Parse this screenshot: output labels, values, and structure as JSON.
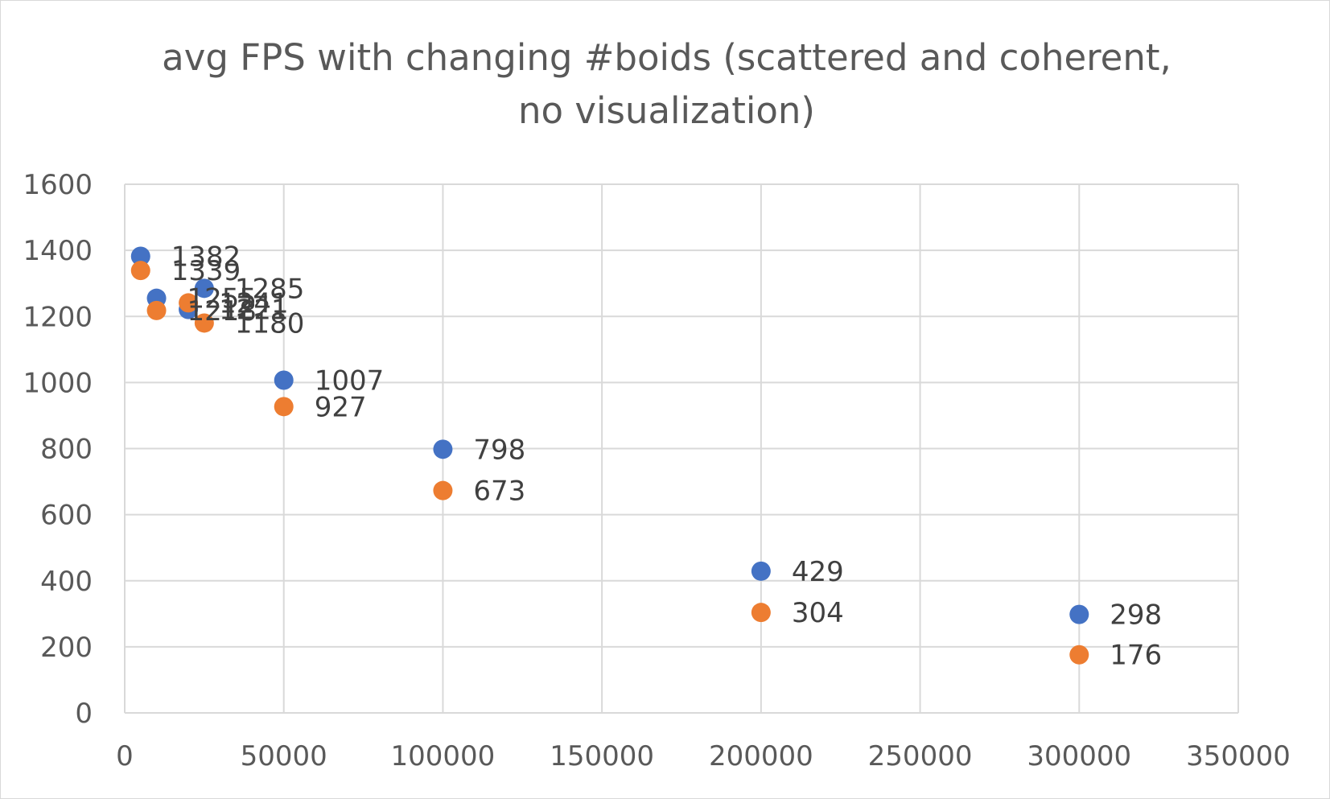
{
  "chart_data": {
    "type": "scatter",
    "title": "avg FPS with changing #boids (scattered and coherent, no visualization)",
    "xlim": [
      0,
      350000
    ],
    "ylim": [
      0,
      1600
    ],
    "x_ticks": [
      "0",
      "50000",
      "100000",
      "150000",
      "200000",
      "250000",
      "300000",
      "350000"
    ],
    "y_ticks": [
      "0",
      "200",
      "400",
      "600",
      "800",
      "1000",
      "1200",
      "1400",
      "1600"
    ],
    "grid": true,
    "legend": "none",
    "series": [
      {
        "color": "#4472c4",
        "points": [
          {
            "x": 5000,
            "y": 1382
          },
          {
            "x": 10000,
            "y": 1255
          },
          {
            "x": 20000,
            "y": 1221
          },
          {
            "x": 25000,
            "y": 1285
          },
          {
            "x": 50000,
            "y": 1007
          },
          {
            "x": 100000,
            "y": 798
          },
          {
            "x": 200000,
            "y": 429
          },
          {
            "x": 300000,
            "y": 298
          }
        ]
      },
      {
        "color": "#ed7d31",
        "points": [
          {
            "x": 5000,
            "y": 1339
          },
          {
            "x": 10000,
            "y": 1218
          },
          {
            "x": 20000,
            "y": 1241
          },
          {
            "x": 25000,
            "y": 1180
          },
          {
            "x": 50000,
            "y": 927
          },
          {
            "x": 100000,
            "y": 673
          },
          {
            "x": 200000,
            "y": 304
          },
          {
            "x": 300000,
            "y": 176
          }
        ]
      }
    ]
  }
}
